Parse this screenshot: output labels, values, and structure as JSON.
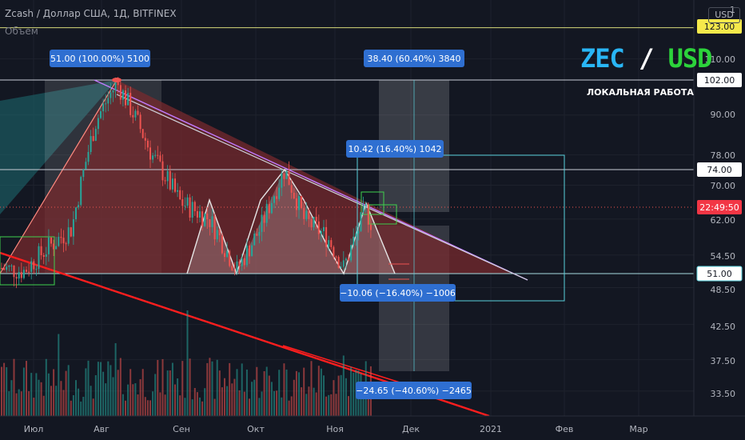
{
  "header": {
    "symbol_line": "Zcash / Доллар США, 1Д, BITFINEX",
    "volume_label": "Объем",
    "currency_button": "USD"
  },
  "overlay": {
    "pair_a": "ZEC",
    "pair_sep": " / ",
    "pair_b": "USD",
    "subtitle": "ЛОКАЛЬНАЯ РАБОТА"
  },
  "colors": {
    "background": "#131722",
    "triangle_fill": "#7a2a2e",
    "bull_candle": "#26a69a",
    "bear_candle": "#ef5350",
    "resistance_line": "#ff1e1e",
    "measure_label_bg": "#2f6fd1",
    "title_accent": "#29b6f6",
    "title_green": "#2cd33b",
    "price_badge_yellow": "#f5e94b"
  },
  "chart_data": {
    "type": "candlestick",
    "symbol": "ZEC/USD",
    "timeframe": "1D",
    "exchange": "BITFINEX",
    "y_axis": {
      "scale": "log",
      "range": [
        31.5,
        132
      ],
      "ticks": [
        "33.50",
        "37.50",
        "42.50",
        "48.50",
        "54.50",
        "62.00",
        "70.00",
        "78.00",
        "90.00",
        "102.00",
        "110.00",
        "1"
      ]
    },
    "x_axis": {
      "ticks": [
        "Июл",
        "Авг",
        "Сен",
        "Окт",
        "Ноя",
        "Дек",
        "2021",
        "Фев",
        "Мар"
      ]
    },
    "price_badges": [
      {
        "text": "123.00",
        "value": 123,
        "style": "yellow"
      },
      {
        "text": "102.00",
        "value": 102,
        "style": "white"
      },
      {
        "text": "74.00",
        "value": 74,
        "style": "white"
      },
      {
        "text": "22:49:50",
        "value": 64.5,
        "style": "red"
      },
      {
        "text": "51.00",
        "value": 51,
        "style": "cyan"
      }
    ],
    "horizontal_levels": [
      123,
      102,
      74,
      51
    ],
    "measurements": [
      {
        "text": "51.00 (100.00%) 5100"
      },
      {
        "text": "38.40 (60.40%) 3840"
      },
      {
        "text": "10.42 (16.40%) 1042"
      },
      {
        "text": "−10.06 (−16.40%) −1006"
      },
      {
        "text": "−24.65 (−40.60%) −2465"
      }
    ],
    "pattern": "descending triangle",
    "triangle": {
      "apex_price": 51,
      "top_price": 102,
      "base_price": 51
    }
  }
}
